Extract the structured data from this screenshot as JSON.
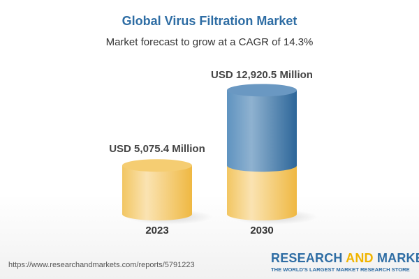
{
  "title": "Global Virus Filtration Market",
  "subtitle": "Market forecast to grow at a CAGR of 14.3%",
  "chart_data": {
    "type": "bar",
    "style": "3d-cylinder",
    "categories": [
      "2023",
      "2030"
    ],
    "values": [
      5075.4,
      12920.5
    ],
    "value_labels": [
      "USD 5,075.4 Million",
      "USD 12,920.5 Million"
    ],
    "unit": "USD Million",
    "colors": {
      "base": "#f2c45a",
      "growth": "#4a7fb0"
    }
  },
  "footer": {
    "url": "https://www.researchandmarkets.com/reports/5791223",
    "logo_part1": "RESEARCH ",
    "logo_part2": "AND",
    "logo_part3": " MARKETS",
    "tagline": "THE WORLD'S LARGEST MARKET RESEARCH STORE"
  }
}
